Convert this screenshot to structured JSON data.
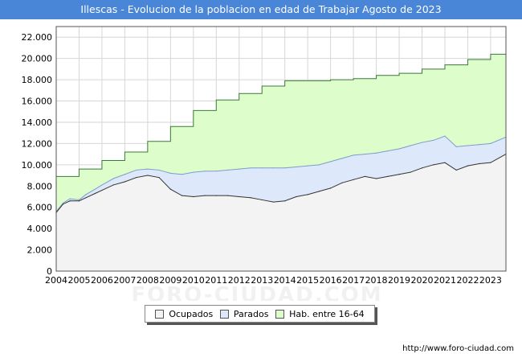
{
  "title": "Illescas - Evolucion de la poblacion en edad de Trabajar Agosto de 2023",
  "source": "http://www.foro-ciudad.com",
  "watermark": "FORO-CIUDAD.COM",
  "colors": {
    "header_bg": "#4a86d8",
    "hab_fill": "#ddfdca",
    "hab_line": "#3a7a3a",
    "parados_fill": "#dde9fb",
    "parados_line": "#7d9ccc",
    "ocupados_fill": "#f3f3f3",
    "ocupados_line": "#333333"
  },
  "chart_data": {
    "type": "area",
    "title": "Illescas - Evolucion de la poblacion en edad de Trabajar Agosto de 2023",
    "xlabel": "",
    "ylabel": "",
    "x_range": [
      2004,
      2023.67
    ],
    "ylim": [
      0,
      23000
    ],
    "grid": true,
    "x_ticks": [
      "2004",
      "2005",
      "2006",
      "2007",
      "2008",
      "2009",
      "2010",
      "2011",
      "2012",
      "2013",
      "2014",
      "2015",
      "2016",
      "2017",
      "2018",
      "2019",
      "2020",
      "2021",
      "2022",
      "2023"
    ],
    "y_ticks": [
      "0",
      "2.000",
      "4.000",
      "6.000",
      "8.000",
      "10.000",
      "12.000",
      "14.000",
      "16.000",
      "18.000",
      "20.000",
      "22.000"
    ],
    "legend": [
      "Ocupados",
      "Parados",
      "Hab. entre 16-64"
    ],
    "legend_position": "bottom",
    "series": [
      {
        "name": "Hab. entre 16-64",
        "step": true,
        "x": [
          2004,
          2005,
          2006,
          2007,
          2008,
          2009,
          2010,
          2011,
          2012,
          2013,
          2014,
          2015,
          2016,
          2017,
          2018,
          2019,
          2020,
          2021,
          2022,
          2023
        ],
        "values": [
          8900,
          9600,
          10400,
          11200,
          12200,
          13600,
          15100,
          16100,
          16700,
          17400,
          17900,
          17900,
          18000,
          18100,
          18400,
          18600,
          19000,
          19400,
          19900,
          20400
        ],
        "end_value": 20600
      },
      {
        "name": "Parados",
        "x": [
          2004,
          2004.3,
          2004.6,
          2005,
          2005.3,
          2005.7,
          2006,
          2006.5,
          2007,
          2007.5,
          2008,
          2008.5,
          2009,
          2009.5,
          2010,
          2010.5,
          2011,
          2011.5,
          2012,
          2012.5,
          2013,
          2013.5,
          2014,
          2014.5,
          2015,
          2015.5,
          2016,
          2016.5,
          2017,
          2017.5,
          2018,
          2018.5,
          2019,
          2019.5,
          2020,
          2020.5,
          2021,
          2021.5,
          2022,
          2022.5,
          2023,
          2023.67
        ],
        "values": [
          5600,
          6400,
          6800,
          6700,
          7200,
          7700,
          8100,
          8700,
          9100,
          9500,
          9600,
          9500,
          9200,
          9100,
          9300,
          9400,
          9400,
          9500,
          9600,
          9700,
          9700,
          9700,
          9700,
          9800,
          9900,
          10000,
          10300,
          10600,
          10900,
          11000,
          11100,
          11300,
          11500,
          11800,
          12100,
          12300,
          12700,
          11700,
          11800,
          11900,
          12000,
          12600
        ]
      },
      {
        "name": "Ocupados",
        "x": [
          2004,
          2004.3,
          2004.6,
          2005,
          2005.3,
          2005.7,
          2006,
          2006.5,
          2007,
          2007.5,
          2008,
          2008.5,
          2009,
          2009.5,
          2010,
          2010.5,
          2011,
          2011.5,
          2012,
          2012.5,
          2013,
          2013.5,
          2014,
          2014.5,
          2015,
          2015.5,
          2016,
          2016.5,
          2017,
          2017.5,
          2018,
          2018.5,
          2019,
          2019.5,
          2020,
          2020.5,
          2021,
          2021.5,
          2022,
          2022.5,
          2023,
          2023.67
        ],
        "values": [
          5500,
          6300,
          6600,
          6600,
          6900,
          7300,
          7600,
          8100,
          8400,
          8800,
          9000,
          8800,
          7700,
          7100,
          7000,
          7100,
          7100,
          7100,
          7000,
          6900,
          6700,
          6500,
          6600,
          7000,
          7200,
          7500,
          7800,
          8300,
          8600,
          8900,
          8700,
          8900,
          9100,
          9300,
          9700,
          10000,
          10200,
          9500,
          9900,
          10100,
          10200,
          11000
        ]
      }
    ]
  }
}
